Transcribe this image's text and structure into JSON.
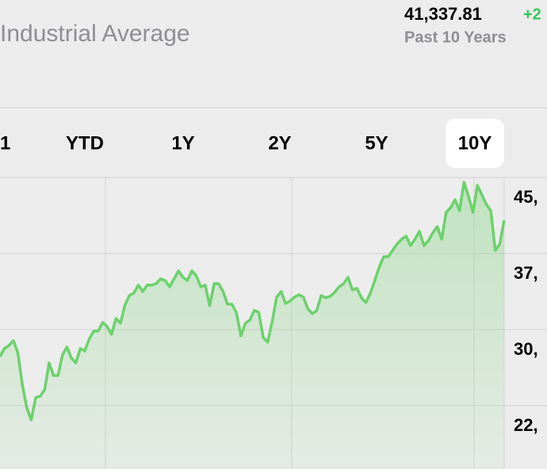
{
  "header": {
    "title": "Industrial Average",
    "price": "41,337.81",
    "change": "+2",
    "subtitle": "Past 10 Years"
  },
  "tabs": [
    "1",
    "YTD",
    "1Y",
    "2Y",
    "5Y",
    "10Y"
  ],
  "selected_tab": "10Y",
  "chart_data": {
    "type": "line",
    "color": "#6cd16c",
    "values": [
      27340,
      28130,
      28440,
      28910,
      27730,
      24610,
      22270,
      21090,
      23280,
      23440,
      24060,
      26720,
      25470,
      25470,
      27500,
      28280,
      27190,
      26720,
      28130,
      27890,
      29060,
      29840,
      29840,
      30700,
      30310,
      29530,
      31090,
      30630,
      32420,
      33360,
      33590,
      34380,
      33750,
      34380,
      34380,
      34530,
      35000,
      34840,
      34220,
      35000,
      35780,
      35160,
      34840,
      35780,
      35310,
      34220,
      34380,
      32340,
      34530,
      34530,
      33750,
      32500,
      32500,
      31640,
      29380,
      30630,
      30940,
      31880,
      31720,
      29220,
      28750,
      30780,
      33200,
      33750,
      32580,
      32810,
      33200,
      33440,
      33200,
      32030,
      31560,
      31880,
      33360,
      33130,
      33280,
      33670,
      34220,
      34530,
      35160,
      33910,
      34060,
      33130,
      32660,
      33590,
      34840,
      36170,
      37190,
      37190,
      37810,
      38440,
      38910,
      39220,
      38280,
      38910,
      39690,
      38280,
      38750,
      39530,
      40160,
      38910,
      41560,
      42030,
      42810,
      41720,
      44530,
      43130,
      41560,
      44220,
      43280,
      42340,
      41720,
      37810,
      38440,
      40780
    ],
    "ylim": [
      16250,
      45000
    ],
    "yticks": [
      {
        "value": 45000,
        "label": "45,"
      },
      {
        "value": 37500,
        "label": "37,"
      },
      {
        "value": 30000,
        "label": "30,"
      },
      {
        "value": 22500,
        "label": "22,"
      }
    ],
    "grid": true
  }
}
